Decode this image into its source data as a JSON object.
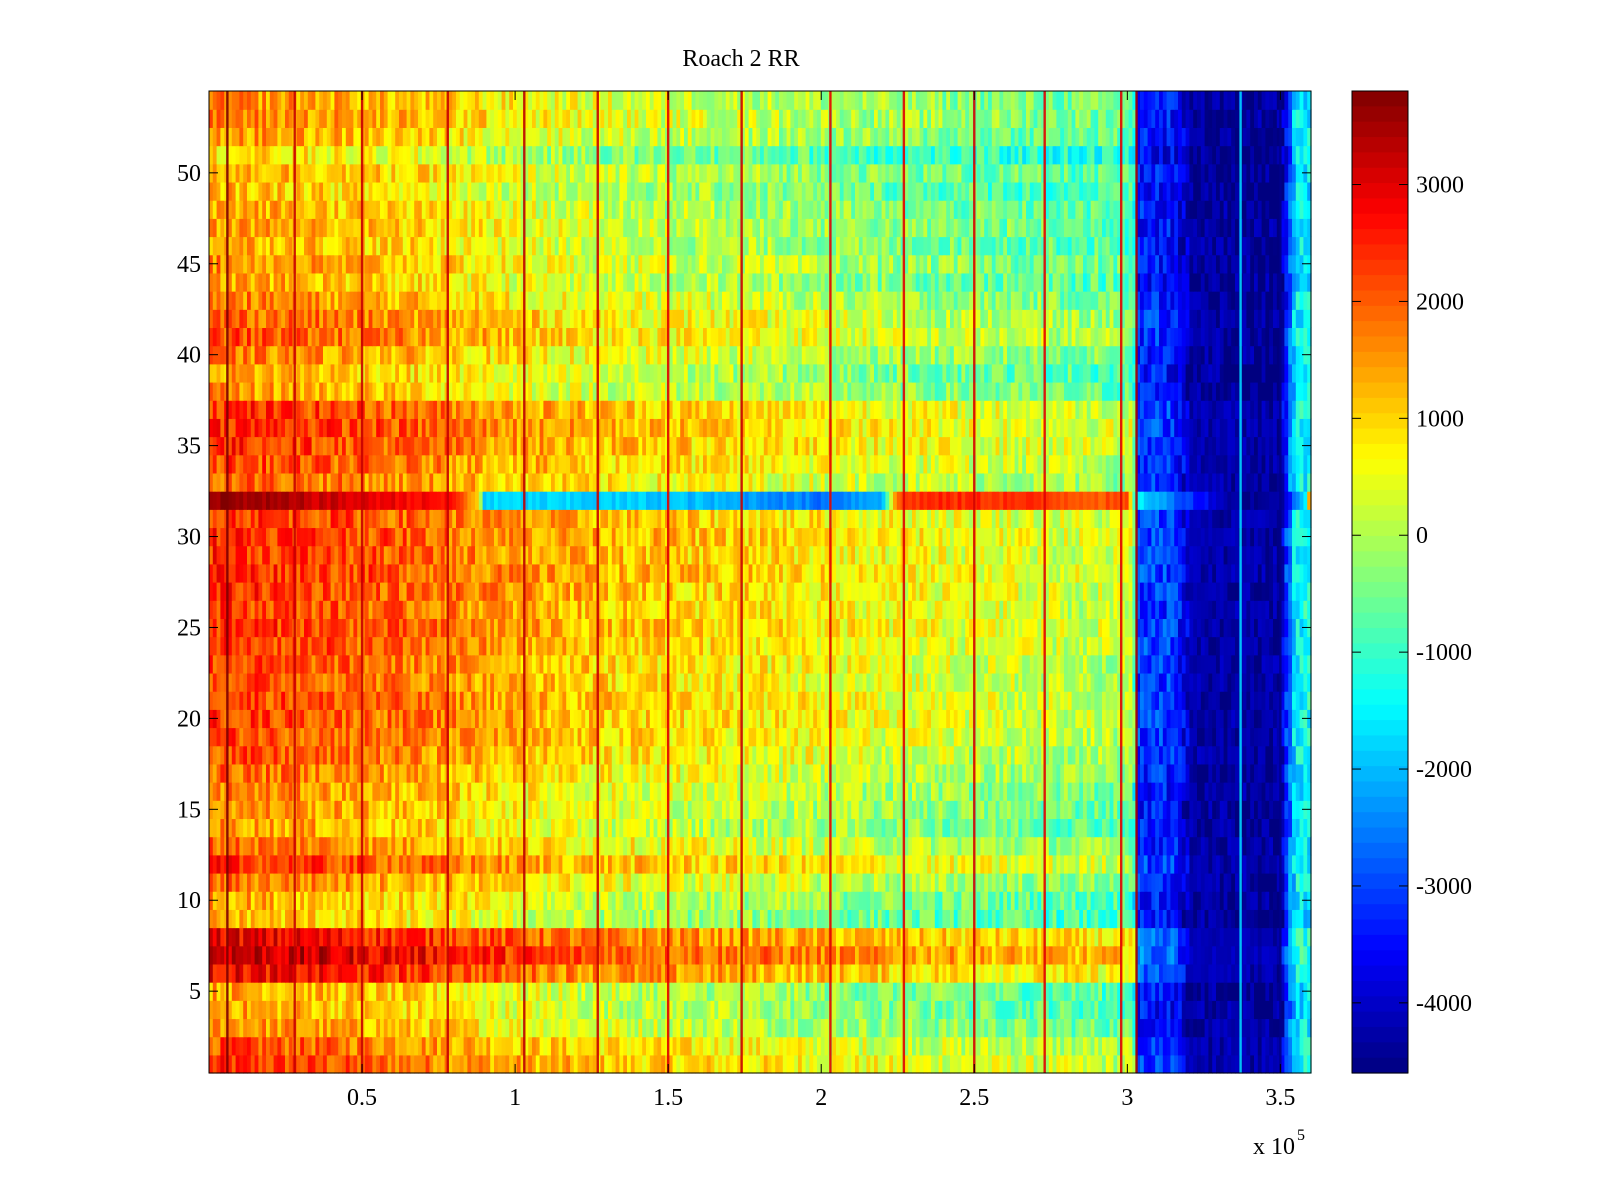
{
  "chart_data": {
    "type": "heatmap",
    "title": "Roach 2 RR",
    "xlabel": "",
    "ylabel": "",
    "x_multiplier_label": "x 10",
    "x_multiplier_exponent": "5",
    "xlim": [
      0,
      3.6
    ],
    "ylim": [
      0.5,
      54.5
    ],
    "xticks": [
      0.5,
      1,
      1.5,
      2,
      2.5,
      3,
      3.5
    ],
    "xtick_labels": [
      "0.5",
      "1",
      "1.5",
      "2",
      "2.5",
      "3",
      "3.5"
    ],
    "yticks": [
      5,
      10,
      15,
      20,
      25,
      30,
      35,
      40,
      45,
      50
    ],
    "ytick_labels": [
      "5",
      "10",
      "15",
      "20",
      "25",
      "30",
      "35",
      "40",
      "45",
      "50"
    ],
    "rows": 54,
    "colorbar": {
      "colormap": "jet",
      "clim": [
        -4600,
        3800
      ],
      "ticks": [
        3000,
        2000,
        1000,
        0,
        -1000,
        -2000,
        -3000,
        -4000
      ],
      "tick_labels": [
        "3000",
        "2000",
        "1000",
        "0",
        "-1000",
        "-2000",
        "-3000",
        "-4000"
      ]
    },
    "column_profile": {
      "x": [
        0.0,
        0.1,
        0.2,
        0.3,
        0.4,
        0.5,
        0.6,
        0.7,
        0.8,
        0.9,
        1.0,
        1.2,
        1.4,
        1.6,
        1.8,
        2.0,
        2.2,
        2.4,
        2.6,
        2.8,
        3.0,
        3.02,
        3.03,
        3.15,
        3.2,
        3.3,
        3.36,
        3.37,
        3.5,
        3.55,
        3.6
      ],
      "base": [
        1400,
        1400,
        1300,
        1250,
        1150,
        1050,
        950,
        850,
        750,
        600,
        450,
        250,
        100,
        0,
        -100,
        -250,
        -400,
        -500,
        -600,
        -700,
        -800,
        -700,
        -3400,
        -3500,
        -4200,
        -4400,
        -4400,
        -4400,
        -4550,
        -1600,
        -1600
      ]
    },
    "row_offsets": [
      {
        "row": 1,
        "value": 900
      },
      {
        "row": 2,
        "value": 700
      },
      {
        "row": 3,
        "value": 200
      },
      {
        "row": 4,
        "value": 0
      },
      {
        "row": 5,
        "value": 0
      },
      {
        "row": 6,
        "value": 1400
      },
      {
        "row": 7,
        "value": 1900
      },
      {
        "row": 8,
        "value": 1500
      },
      {
        "row": 9,
        "value": -200
      },
      {
        "row": 10,
        "value": 0
      },
      {
        "row": 11,
        "value": 400
      },
      {
        "row": 12,
        "value": 1000
      },
      {
        "row": 13,
        "value": 500
      },
      {
        "row": 14,
        "value": 100
      },
      {
        "row": 15,
        "value": 200
      },
      {
        "row": 16,
        "value": 300
      },
      {
        "row": 17,
        "value": 500
      },
      {
        "row": 18,
        "value": 700
      },
      {
        "row": 19,
        "value": 800
      },
      {
        "row": 20,
        "value": 900
      },
      {
        "row": 21,
        "value": 900
      },
      {
        "row": 22,
        "value": 800
      },
      {
        "row": 23,
        "value": 800
      },
      {
        "row": 24,
        "value": 900
      },
      {
        "row": 25,
        "value": 1000
      },
      {
        "row": 26,
        "value": 900
      },
      {
        "row": 27,
        "value": 1000
      },
      {
        "row": 28,
        "value": 1100
      },
      {
        "row": 29,
        "value": 1000
      },
      {
        "row": 30,
        "value": 1100
      },
      {
        "row": 31,
        "value": 1000
      },
      {
        "row": 32,
        "value": 0
      },
      {
        "row": 33,
        "value": 600
      },
      {
        "row": 34,
        "value": 800
      },
      {
        "row": 35,
        "value": 1000
      },
      {
        "row": 36,
        "value": 1100
      },
      {
        "row": 37,
        "value": 1000
      },
      {
        "row": 38,
        "value": 100
      },
      {
        "row": 39,
        "value": 0
      },
      {
        "row": 40,
        "value": 300
      },
      {
        "row": 41,
        "value": 700
      },
      {
        "row": 42,
        "value": 600
      },
      {
        "row": 43,
        "value": 300
      },
      {
        "row": 44,
        "value": 0
      },
      {
        "row": 45,
        "value": 200
      },
      {
        "row": 46,
        "value": 0
      },
      {
        "row": 47,
        "value": 100
      },
      {
        "row": 48,
        "value": 0
      },
      {
        "row": 49,
        "value": -200
      },
      {
        "row": 50,
        "value": 0
      },
      {
        "row": 51,
        "value": -500
      },
      {
        "row": 52,
        "value": 100
      },
      {
        "row": 53,
        "value": 300
      },
      {
        "row": 54,
        "value": 200
      }
    ],
    "row32_profile": {
      "row": 32,
      "x": [
        0.0,
        0.5,
        0.8,
        0.88,
        0.9,
        1.5,
        1.9,
        2.0,
        2.2,
        2.25,
        2.3,
        2.6,
        3.0,
        3.03,
        3.35,
        3.5,
        3.58,
        3.6
      ],
      "value": [
        3700,
        3000,
        2600,
        1000,
        -1800,
        -1900,
        -2400,
        -2600,
        -2000,
        2000,
        2400,
        2400,
        2000,
        -1500,
        -4400,
        -4400,
        -1600,
        2500
      ]
    },
    "vertical_streaks": {
      "x": [
        0.06,
        0.28,
        0.5,
        0.78,
        1.03,
        1.27,
        1.5,
        1.74,
        2.03,
        2.27,
        2.5,
        2.73,
        2.98,
        3.03,
        3.37,
        3.5
      ],
      "value": [
        3800,
        3200,
        3200,
        3200,
        3300,
        3200,
        3000,
        3200,
        3000,
        3000,
        3100,
        3000,
        3000,
        3500,
        -1800,
        -4500
      ]
    },
    "noise_amplitude": 650
  }
}
